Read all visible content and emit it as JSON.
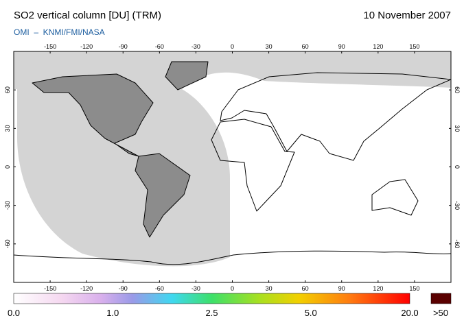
{
  "header": {
    "title": "SO2 vertical column [DU] (TRM)",
    "date": "10 November 2007",
    "source": "OMI  –  KNMI/FMI/NASA"
  },
  "map": {
    "lon_ticks": [
      -150,
      -120,
      -90,
      -60,
      -30,
      0,
      30,
      60,
      90,
      120,
      150
    ],
    "lat_ticks": [
      60,
      30,
      0,
      -30,
      -60
    ]
  },
  "colorbar": {
    "labels": [
      "0.0",
      "1.0",
      "2.5",
      "5.0",
      "20.0"
    ],
    "overflow_label": ">50"
  }
}
